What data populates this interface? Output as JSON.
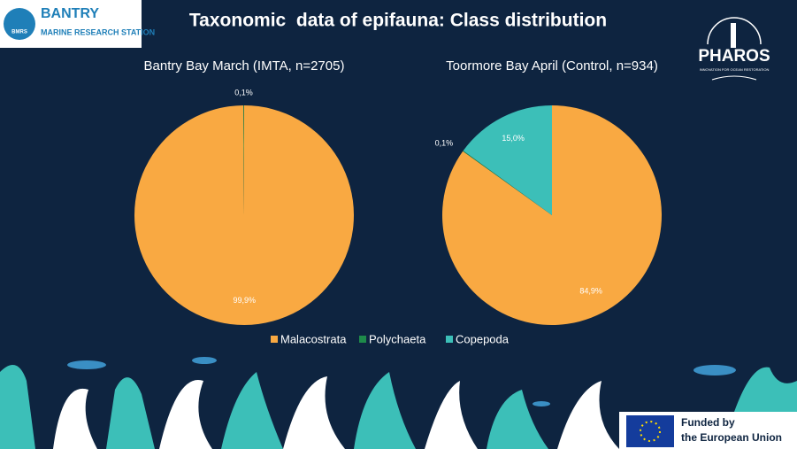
{
  "header": {
    "title": "Taxonomic  data of epifauna: Class distribution"
  },
  "logos": {
    "bantry": "BANTRY",
    "station": "MARINE RESEARCH STATION",
    "bmrs": "BMRS",
    "pharos": "PHAROS",
    "pharos_tagline": "INNOVATION FOR OCEAN RESTORATION",
    "eu_line1": "Funded by",
    "eu_line2": "the European Union"
  },
  "chart_data": [
    {
      "type": "pie",
      "title": "Bantry Bay March (IMTA, n=2705)",
      "categories": [
        "Malacostrata",
        "Polychaeta"
      ],
      "values": [
        99.9,
        0.1
      ],
      "value_labels": [
        "99,9%",
        "0,1%"
      ],
      "colors": [
        "#f9a942",
        "#1e8a4a"
      ]
    },
    {
      "type": "pie",
      "title": "Toormore Bay April (Control, n=934)",
      "categories": [
        "Malacostrata",
        "Polychaeta",
        "Copepoda"
      ],
      "values": [
        84.9,
        0.1,
        15.0
      ],
      "value_labels": [
        "84,9%",
        "0,1%",
        "15,0%"
      ],
      "colors": [
        "#f9a942",
        "#1e8a4a",
        "#3cbfb8"
      ],
      "legend": "bottom"
    }
  ]
}
